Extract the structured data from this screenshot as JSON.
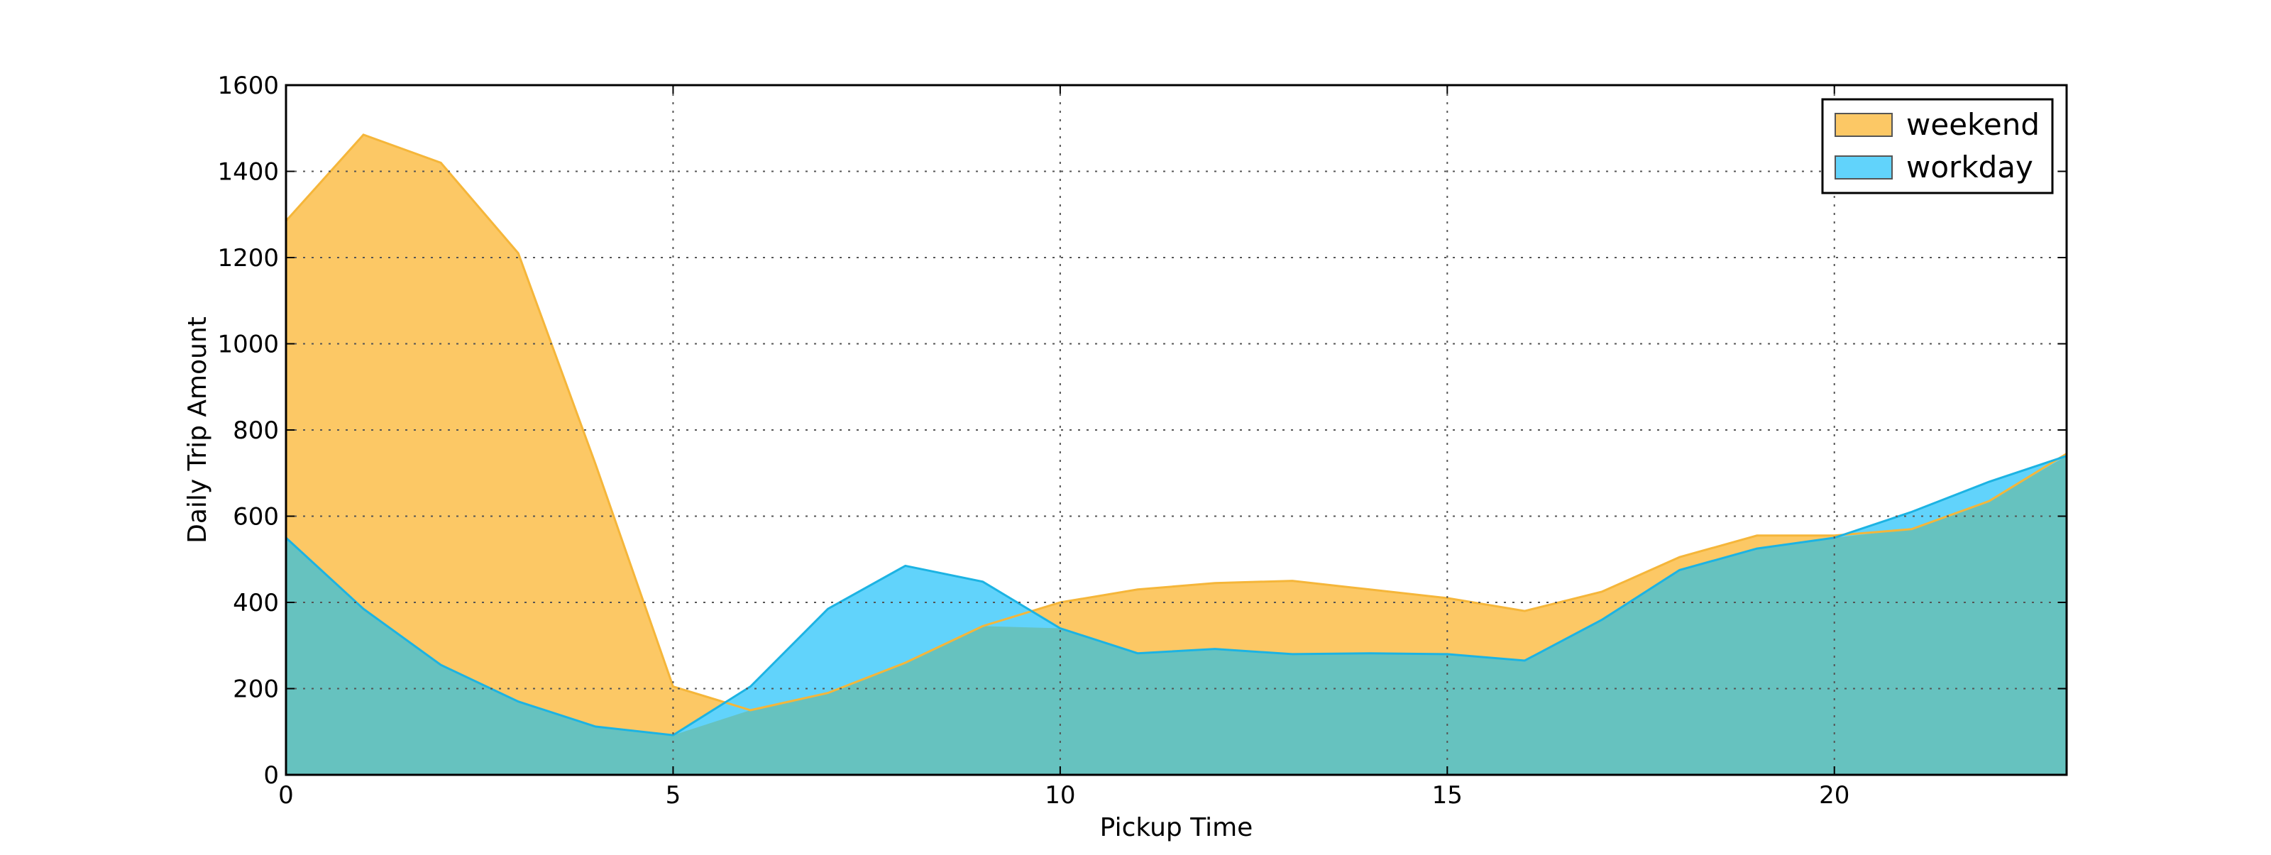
{
  "chart_data": {
    "type": "area",
    "title": "",
    "xlabel": "Pickup Time",
    "ylabel": "Daily Trip Amount",
    "xlim": [
      0,
      23
    ],
    "ylim": [
      0,
      1600
    ],
    "x_ticks": [
      0,
      5,
      10,
      15,
      20
    ],
    "x_tick_labels": [
      "0",
      "5",
      "10",
      "15",
      "20"
    ],
    "y_ticks": [
      0,
      200,
      400,
      600,
      800,
      1000,
      1200,
      1400,
      1600
    ],
    "y_tick_labels": [
      "0",
      "200",
      "400",
      "600",
      "800",
      "1000",
      "1200",
      "1400",
      "1600"
    ],
    "grid": true,
    "legend_position": "top-right",
    "x": [
      0,
      1,
      2,
      3,
      4,
      5,
      6,
      7,
      8,
      9,
      10,
      11,
      12,
      13,
      14,
      15,
      16,
      17,
      18,
      19,
      20,
      21,
      22,
      23
    ],
    "series": [
      {
        "name": "weekend",
        "fill": "#fcc865",
        "stroke": "#f5b63a",
        "values": [
          1285,
          1485,
          1420,
          1210,
          720,
          205,
          150,
          190,
          260,
          345,
          400,
          430,
          445,
          450,
          430,
          410,
          380,
          425,
          505,
          555,
          555,
          570,
          635,
          745
        ]
      },
      {
        "name": "workday",
        "fill": "#61d3fb",
        "stroke": "#1cb3e3",
        "values": [
          550,
          385,
          255,
          170,
          112,
          92,
          205,
          385,
          485,
          448,
          340,
          282,
          292,
          280,
          282,
          280,
          265,
          360,
          475,
          525,
          550,
          610,
          680,
          740
        ]
      }
    ],
    "overlap_color": "#66c2bf"
  }
}
